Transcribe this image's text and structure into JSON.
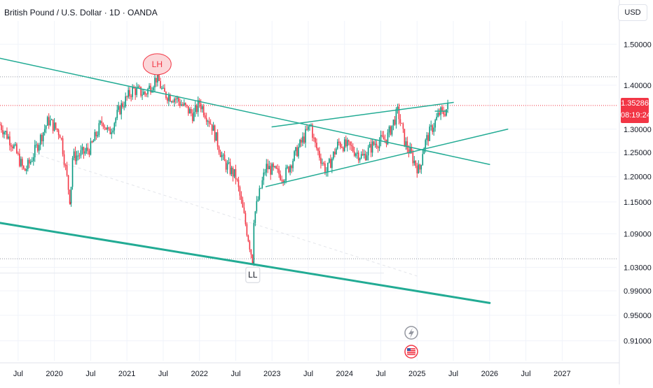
{
  "header": {
    "title": "British Pound / U.S. Dollar · 1D · OANDA",
    "currency": "USD"
  },
  "price_badge": {
    "price": "1.35286",
    "countdown": "08:19:24",
    "color": "#f23645"
  },
  "annotations": {
    "lower_high": "LH",
    "lower_low": "LL"
  },
  "icons": {
    "event": "lightning-icon",
    "flag": "us-flag-icon"
  },
  "colors": {
    "up": "#089981",
    "down": "#f23645",
    "trendline": "#22ab94",
    "label_bg": "#fbd7d9"
  },
  "chart_data": {
    "type": "candlestick",
    "title": "British Pound / U.S. Dollar · 1D · OANDA",
    "xlabel": "",
    "ylabel": "",
    "y_unit": "USD",
    "y_scale": "log",
    "ylim": [
      0.88,
      1.56
    ],
    "xlim": [
      "2019-04",
      "2027-10"
    ],
    "y_ticks": [
      "1.50000",
      "1.40000",
      "1.30000",
      "1.25000",
      "1.20000",
      "1.15000",
      "1.09000",
      "1.03000",
      "0.99000",
      "0.95000",
      "0.91000"
    ],
    "x_ticks": [
      {
        "t": "2019-07",
        "label": "Jul"
      },
      {
        "t": "2020-01",
        "label": "2020"
      },
      {
        "t": "2020-07",
        "label": "Jul"
      },
      {
        "t": "2021-01",
        "label": "2021"
      },
      {
        "t": "2021-07",
        "label": "Jul"
      },
      {
        "t": "2022-01",
        "label": "2022"
      },
      {
        "t": "2022-07",
        "label": "Jul"
      },
      {
        "t": "2023-01",
        "label": "2023"
      },
      {
        "t": "2023-07",
        "label": "Jul"
      },
      {
        "t": "2024-01",
        "label": "2024"
      },
      {
        "t": "2024-07",
        "label": "Jul"
      },
      {
        "t": "2025-01",
        "label": "2025"
      },
      {
        "t": "2025-07",
        "label": "Jul"
      },
      {
        "t": "2026-01",
        "label": "2026"
      },
      {
        "t": "2026-07",
        "label": "Jul"
      },
      {
        "t": "2027-01",
        "label": "2027"
      }
    ],
    "price_path": [
      [
        "2019-04",
        1.31
      ],
      [
        "2019-06",
        1.27
      ],
      [
        "2019-08",
        1.21
      ],
      [
        "2019-09",
        1.23
      ],
      [
        "2019-12",
        1.32
      ],
      [
        "2020-02",
        1.29
      ],
      [
        "2020-03-20",
        1.15
      ],
      [
        "2020-04",
        1.24
      ],
      [
        "2020-06",
        1.25
      ],
      [
        "2020-07",
        1.26
      ],
      [
        "2020-09",
        1.32
      ],
      [
        "2020-10",
        1.29
      ],
      [
        "2020-12",
        1.35
      ],
      [
        "2021-02",
        1.39
      ],
      [
        "2021-04",
        1.38
      ],
      [
        "2021-06-01",
        1.42
      ],
      [
        "2021-07",
        1.38
      ],
      [
        "2021-09",
        1.37
      ],
      [
        "2021-12",
        1.33
      ],
      [
        "2022-01",
        1.36
      ],
      [
        "2022-03",
        1.31
      ],
      [
        "2022-05",
        1.23
      ],
      [
        "2022-07",
        1.2
      ],
      [
        "2022-09-26",
        1.04
      ],
      [
        "2022-10",
        1.12
      ],
      [
        "2022-12",
        1.22
      ],
      [
        "2023-03",
        1.2
      ],
      [
        "2023-05",
        1.25
      ],
      [
        "2023-07-14",
        1.31
      ],
      [
        "2023-08",
        1.27
      ],
      [
        "2023-10",
        1.21
      ],
      [
        "2023-12",
        1.27
      ],
      [
        "2024-02",
        1.26
      ],
      [
        "2024-04",
        1.24
      ],
      [
        "2024-06",
        1.27
      ],
      [
        "2024-08",
        1.28
      ],
      [
        "2024-09-26",
        1.34
      ],
      [
        "2024-11",
        1.27
      ],
      [
        "2025-01-13",
        1.21
      ],
      [
        "2025-02",
        1.26
      ],
      [
        "2025-03",
        1.29
      ],
      [
        "2025-04-28",
        1.34
      ],
      [
        "2025-05",
        1.33
      ],
      [
        "2025-06-10",
        1.35286
      ]
    ],
    "trendlines": [
      {
        "name": "",
        "points": [
          [
            "2019-04",
            1.465
          ],
          [
            "2026-01",
            1.225
          ]
        ],
        "width": 1.5
      },
      {
        "name": "",
        "points": [
          [
            "2019-04",
            1.11
          ],
          [
            "2026-01",
            0.97
          ]
        ],
        "width": 3
      },
      {
        "name": "",
        "points": [
          [
            "2022-12",
            1.18
          ],
          [
            "2026-04",
            1.3
          ]
        ],
        "width": 1.5
      },
      {
        "name": "",
        "points": [
          [
            "2023-01",
            1.305
          ],
          [
            "2025-07",
            1.36
          ]
        ],
        "width": 1.5
      },
      {
        "name": "",
        "points": [
          [
            "2025-04",
            1.34
          ],
          [
            "2025-06",
            1.34
          ]
        ],
        "width": 1.5
      }
    ],
    "ghost_line": {
      "points": [
        [
          "2019-09",
          1.25
        ],
        [
          "2025-01",
          1.015
        ]
      ]
    },
    "horizontal_levels": [
      {
        "value": 1.42,
        "style": "dotted",
        "color": "#9598a1"
      },
      {
        "value": 1.353,
        "style": "dotted",
        "color": "#f23645"
      },
      {
        "value": 1.045,
        "style": "dotted",
        "color": "#9598a1"
      }
    ],
    "markers": [
      {
        "text": "LH",
        "t": "2021-06-01",
        "value": 1.42,
        "position": "above",
        "style": "pink-circle"
      },
      {
        "text": "LL",
        "t": "2022-09-26",
        "value": 1.04,
        "position": "below",
        "style": "box"
      }
    ],
    "grid": true,
    "legend": "none"
  }
}
